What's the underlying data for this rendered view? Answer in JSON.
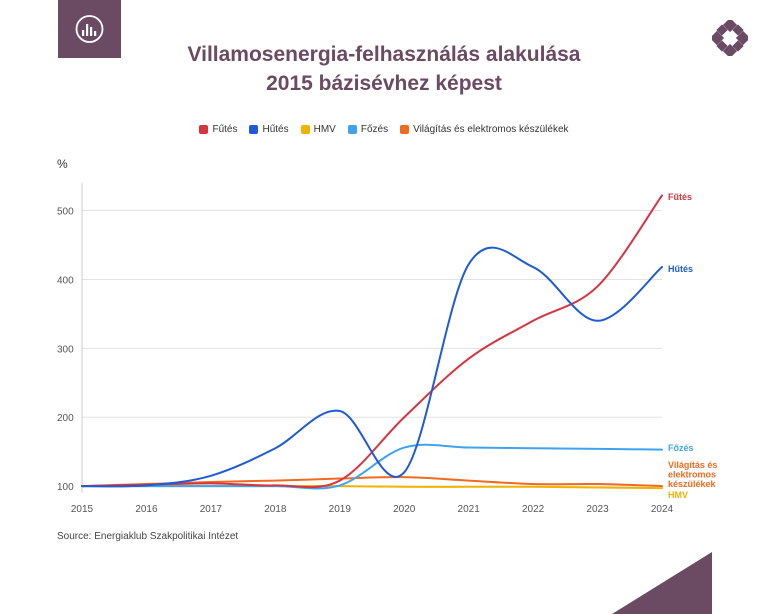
{
  "title_line1": "Villamosenergia-felhasználás alakulása",
  "title_line2": "2015 bázisévhez képest",
  "source": "Source: Energiaklub Szakpolitikai Intézet",
  "colors": {
    "brand": "#6b4a63",
    "logo_fg": "#ffffff"
  },
  "icons": {
    "logo": "bar-chart-circle-icon",
    "brand": "energiaklub-logo-icon"
  },
  "chart_data": {
    "type": "line",
    "ylabel": "%",
    "xlabel": "",
    "x": [
      "2015",
      "2016",
      "2017",
      "2018",
      "2019",
      "2020",
      "2021",
      "2022",
      "2023",
      "2024"
    ],
    "ylim": [
      90,
      540
    ],
    "yticks": [
      100,
      200,
      300,
      400,
      500
    ],
    "grid": true,
    "legend": "top-center",
    "series": [
      {
        "name": "Fűtés",
        "color": "#d6343f",
        "end_label": "Fűtés",
        "values": [
          100,
          102,
          104,
          101,
          108,
          200,
          285,
          340,
          390,
          522
        ]
      },
      {
        "name": "Hűtés",
        "color": "#1f5bd6",
        "end_label": "Hűtés",
        "values": [
          100,
          101,
          115,
          155,
          209,
          120,
          422,
          418,
          340,
          418
        ]
      },
      {
        "name": "HMV",
        "color": "#f0b400",
        "end_label": "HMV",
        "values": [
          100,
          100,
          100,
          100,
          100,
          99,
          99,
          99,
          98,
          97
        ]
      },
      {
        "name": "Főzés",
        "color": "#3fa3f0",
        "end_label": "Főzés",
        "values": [
          100,
          100,
          100,
          100,
          101,
          156,
          156,
          155,
          154,
          153
        ]
      },
      {
        "name": "Világítás és elektromos készülékek",
        "color": "#f06a1f",
        "end_label": [
          "Világítás és",
          "elektromos",
          "készülékek"
        ],
        "values": [
          100,
          103,
          106,
          108,
          111,
          113,
          108,
          103,
          103,
          100
        ]
      }
    ]
  }
}
